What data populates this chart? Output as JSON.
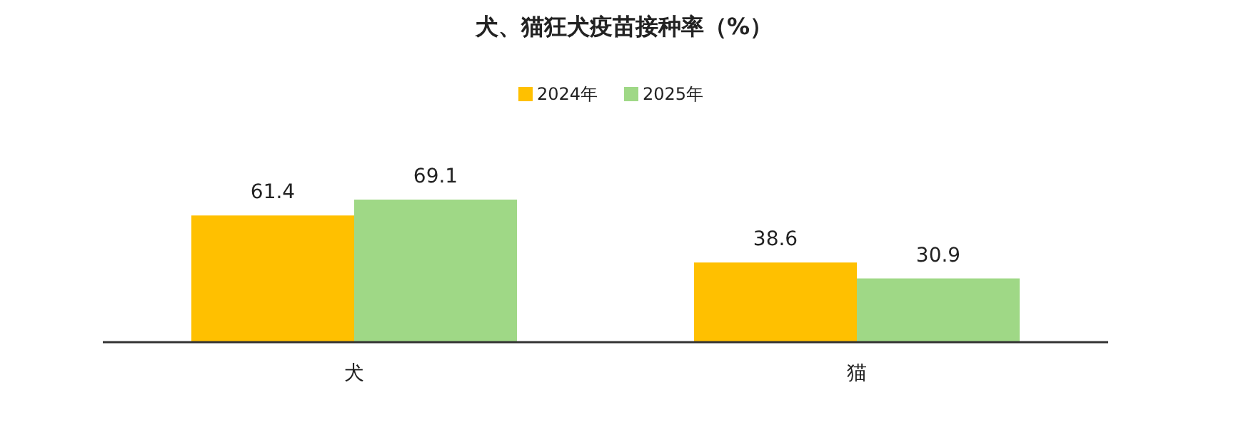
{
  "chart_data": {
    "type": "bar",
    "title": "犬、猫狂犬疫苗接种率（%）",
    "categories": [
      "犬",
      "猫"
    ],
    "series": [
      {
        "name": "2024年",
        "color": "#ffc000",
        "values": [
          61.4,
          38.6
        ]
      },
      {
        "name": "2025年",
        "color": "#9fd886",
        "values": [
          69.1,
          30.9
        ]
      }
    ],
    "data_labels": true,
    "legend": "top",
    "grid": false
  }
}
